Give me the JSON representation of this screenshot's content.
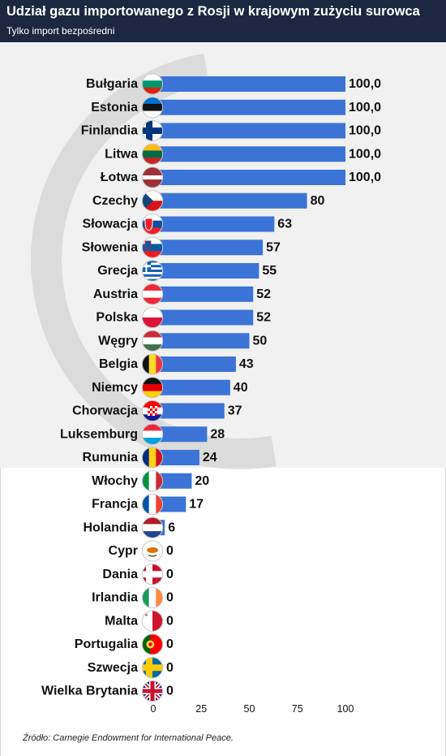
{
  "title": "Udział gazu importowanego z Rosji w krajowym zużyciu surowca",
  "subtitle": "Tylko import bezpośredni",
  "source": "Źródło: Carnegie Endowment for International Peace.",
  "colors": {
    "bar": "#3b74d6",
    "header": "#1c2841",
    "panel": "#f1f1f1"
  },
  "chart_data": {
    "type": "bar",
    "orientation": "horizontal",
    "categories": [
      "Bułgaria",
      "Estonia",
      "Finlandia",
      "Litwa",
      "Łotwa",
      "Czechy",
      "Słowacja",
      "Słowenia",
      "Grecja",
      "Austria",
      "Polska",
      "Węgry",
      "Belgia",
      "Niemcy",
      "Chorwacja",
      "Luksemburg",
      "Rumunia",
      "Włochy",
      "Francja",
      "Holandia",
      "Cypr",
      "Dania",
      "Irlandia",
      "Malta",
      "Portugalia",
      "Szwecja",
      "Wielka Brytania"
    ],
    "values": [
      100,
      100,
      100,
      100,
      100,
      80,
      63,
      57,
      55,
      52,
      52,
      50,
      43,
      40,
      37,
      28,
      24,
      20,
      17,
      6,
      0,
      0,
      0,
      0,
      0,
      0,
      0
    ],
    "value_labels": [
      "100,0",
      "100,0",
      "100,0",
      "100,0",
      "100,0",
      "80",
      "63",
      "57",
      "55",
      "52",
      "52",
      "50",
      "43",
      "40",
      "37",
      "28",
      "24",
      "20",
      "17",
      "6",
      "0",
      "0",
      "0",
      "0",
      "0",
      "0",
      "0"
    ],
    "flags": [
      "flag-bulgaria",
      "flag-estonia",
      "flag-finland",
      "flag-lithuania",
      "flag-latvia",
      "flag-czechia",
      "flag-slovakia",
      "flag-slovenia",
      "flag-greece",
      "flag-austria",
      "flag-poland",
      "flag-hungary",
      "flag-belgium",
      "flag-germany",
      "flag-croatia",
      "flag-luxembourg",
      "flag-romania",
      "flag-italy",
      "flag-france",
      "flag-netherlands",
      "flag-cyprus",
      "flag-denmark",
      "flag-ireland",
      "flag-malta",
      "flag-portugal",
      "flag-sweden",
      "flag-united-kingdom"
    ],
    "xticks": [
      "0",
      "25",
      "50",
      "75",
      "100"
    ],
    "xlim": [
      0,
      100
    ],
    "grid": false,
    "legend": "none"
  }
}
